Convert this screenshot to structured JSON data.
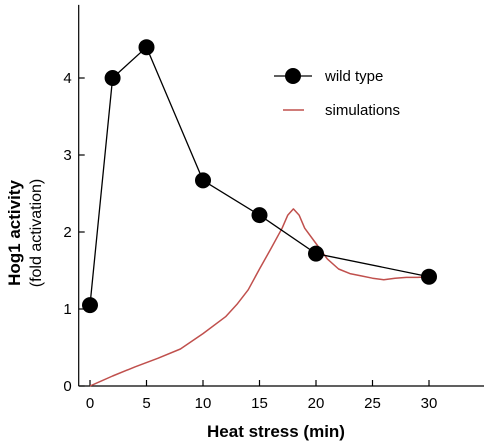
{
  "chart_data": {
    "type": "line",
    "xlabel": "Heat stress (min)",
    "ylabel": "Hog1 activity",
    "ylabel_sub": "(fold activation)",
    "xlim": [
      -1,
      37
    ],
    "ylim": [
      0,
      4.95
    ],
    "xticks": [
      0,
      5,
      10,
      15,
      20,
      25,
      30
    ],
    "yticks": [
      0,
      1,
      2,
      3,
      4
    ],
    "grid": false,
    "legend_position": "top-right",
    "series": [
      {
        "name": "wild type",
        "style": "line-with-markers",
        "color": "#000000",
        "x": [
          0,
          2,
          5,
          10,
          15,
          20,
          30
        ],
        "y": [
          1.05,
          4.0,
          4.4,
          2.67,
          2.22,
          1.72,
          1.42
        ]
      },
      {
        "name": "simulations",
        "style": "line",
        "color": "#c0504d",
        "x": [
          0,
          2,
          4,
          6,
          8,
          10,
          12,
          13,
          14,
          15,
          16,
          17,
          17.5,
          18,
          18.5,
          19,
          20,
          21,
          22,
          23,
          24,
          25,
          26,
          27,
          28,
          29,
          30
        ],
        "y": [
          0,
          0.13,
          0.25,
          0.36,
          0.48,
          0.68,
          0.9,
          1.06,
          1.25,
          1.52,
          1.78,
          2.05,
          2.22,
          2.3,
          2.22,
          2.05,
          1.85,
          1.65,
          1.52,
          1.46,
          1.43,
          1.4,
          1.38,
          1.4,
          1.41,
          1.41,
          1.42
        ]
      }
    ]
  }
}
